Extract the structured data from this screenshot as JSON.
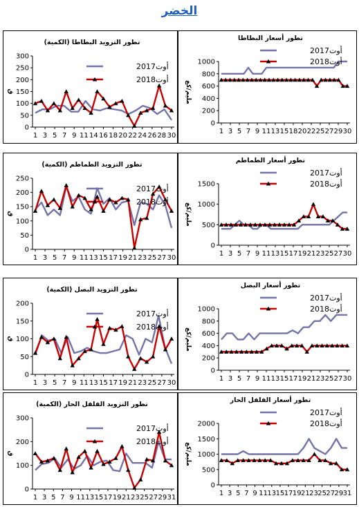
{
  "page": {
    "title": "الخضر"
  },
  "colors": {
    "series_2017": "#7373a8",
    "series_2018": "#c80000",
    "marker_2018": "#000000"
  },
  "chart_data": [
    {
      "id": "potato-supply",
      "type": "line",
      "title": "تطور التزويد البطاطا (الكمية)",
      "ylabel": "ق",
      "ylim": [
        0,
        300
      ],
      "yticks": [
        0,
        50,
        100,
        150,
        200,
        250,
        300
      ],
      "xtick_labels": [
        "1",
        "3",
        "5",
        "7",
        "9",
        "11",
        "14",
        "16",
        "18",
        "20",
        "22",
        "24",
        "26",
        "28",
        "30"
      ],
      "legend": [
        "أوت2017",
        "أوت2018"
      ],
      "series": [
        {
          "name": "أوت2017",
          "values": [
            60,
            75,
            75,
            90,
            90,
            65,
            65,
            110,
            75,
            70,
            80,
            75,
            70,
            55,
            70,
            90,
            80,
            55,
            75,
            30
          ]
        },
        {
          "name": "أوت2018",
          "values": [
            100,
            110,
            70,
            100,
            70,
            150,
            80,
            115,
            80,
            60,
            150,
            120,
            85,
            100,
            110,
            50,
            5,
            60,
            70,
            80,
            175,
            90,
            70
          ]
        }
      ]
    },
    {
      "id": "potato-price",
      "type": "line",
      "title": "تطور أسعار البطاطا",
      "ylabel": "مليم/كغ",
      "ylim": [
        0,
        1000
      ],
      "yticks": [
        0,
        200,
        400,
        600,
        800,
        1000
      ],
      "xtick_labels": [
        "1",
        "3",
        "5",
        "7",
        "9",
        "11",
        "13",
        "15",
        "18",
        "20",
        "22",
        "25",
        "27",
        "29",
        "30"
      ],
      "legend": [
        "أوت2017",
        "أوت2018"
      ],
      "series": [
        {
          "name": "أوت2017",
          "values": [
            800,
            800,
            800,
            800,
            800,
            800,
            900,
            800,
            800,
            800,
            900,
            900,
            900,
            900,
            900,
            900,
            900,
            900,
            900,
            900,
            900,
            900,
            900,
            900,
            900,
            900,
            1000,
            1000,
            1000
          ]
        },
        {
          "name": "أوت2018",
          "values": [
            700,
            700,
            700,
            700,
            700,
            700,
            700,
            700,
            700,
            700,
            700,
            700,
            700,
            700,
            700,
            700,
            700,
            700,
            700,
            700,
            700,
            700,
            600,
            700,
            700,
            700,
            700,
            700,
            600,
            600
          ]
        }
      ]
    },
    {
      "id": "tomato-supply",
      "type": "line",
      "title": "تطور التزويد الطماطم (الكمية)",
      "ylabel": "ق",
      "ylim": [
        0,
        250
      ],
      "yticks": [
        0,
        50,
        100,
        150,
        200,
        250
      ],
      "xtick_labels": [
        "1",
        "3",
        "5",
        "7",
        "9",
        "11",
        "13",
        "15",
        "17",
        "19",
        "21",
        "23",
        "25",
        "27",
        "30"
      ],
      "legend": [
        "أوت2017",
        "أوت2018"
      ],
      "series": [
        {
          "name": "أوت2017",
          "values": [
            140,
            165,
            120,
            140,
            120,
            220,
            170,
            185,
            140,
            125,
            215,
            160,
            180,
            140,
            165,
            170,
            85,
            165,
            160,
            140,
            190,
            155,
            75
          ]
        },
        {
          "name": "أوت2018",
          "values": [
            135,
            205,
            155,
            175,
            145,
            225,
            150,
            190,
            180,
            140,
            185,
            135,
            175,
            165,
            180,
            175,
            5,
            105,
            110,
            195,
            220,
            175,
            135
          ]
        }
      ]
    },
    {
      "id": "tomato-price",
      "type": "line",
      "title": "تطور أسعار الطماطم",
      "ylabel": "مليم/كغ",
      "ylim": [
        0,
        1500
      ],
      "yticks": [
        0,
        500,
        1000,
        1500
      ],
      "xtick_labels": [
        "1",
        "3",
        "5",
        "7",
        "9",
        "11",
        "13",
        "15",
        "17",
        "19",
        "21",
        "23",
        "25",
        "27",
        "30"
      ],
      "legend": [
        "أوت2017",
        "أوت2018"
      ],
      "series": [
        {
          "name": "أوت2017",
          "values": [
            400,
            400,
            400,
            500,
            600,
            500,
            500,
            400,
            400,
            500,
            500,
            400,
            400,
            400,
            400,
            400,
            400,
            400,
            500,
            500,
            500,
            500,
            500,
            500,
            500,
            600,
            700,
            800,
            800
          ]
        },
        {
          "name": "أوت2018",
          "values": [
            500,
            500,
            500,
            500,
            500,
            500,
            500,
            500,
            500,
            500,
            500,
            500,
            500,
            500,
            500,
            500,
            600,
            700,
            700,
            1000,
            700,
            700,
            600,
            600,
            500,
            400,
            400
          ]
        }
      ]
    },
    {
      "id": "onion-supply",
      "type": "line",
      "title": "تطور التزويد البصل (الكمية)",
      "ylabel": "ق",
      "ylim": [
        0,
        200
      ],
      "yticks": [
        0,
        50,
        100,
        150,
        200
      ],
      "xtick_labels": [
        "1",
        "3",
        "5",
        "7",
        "9",
        "11",
        "13",
        "15",
        "17",
        "19",
        "21",
        "23",
        "25",
        "27",
        "30"
      ],
      "legend": [
        "أوت2017",
        "أوت2018"
      ],
      "series": [
        {
          "name": "أوت2017",
          "values": [
            55,
            110,
            95,
            100,
            60,
            105,
            60,
            65,
            75,
            65,
            60,
            60,
            65,
            70,
            110,
            100,
            55,
            100,
            90,
            165,
            75,
            30
          ]
        },
        {
          "name": "أوت2018",
          "values": [
            60,
            105,
            90,
            100,
            45,
            105,
            25,
            45,
            65,
            70,
            155,
            85,
            130,
            125,
            135,
            50,
            15,
            45,
            35,
            50,
            135,
            70,
            100
          ]
        }
      ]
    },
    {
      "id": "onion-price",
      "type": "line",
      "title": "تطور أسعار البصل",
      "ylabel": "مليم/كغ",
      "ylim": [
        0,
        1000
      ],
      "yticks": [
        0,
        200,
        400,
        600,
        800,
        1000
      ],
      "xtick_labels": [
        "1",
        "3",
        "5",
        "7",
        "9",
        "11",
        "13",
        "15",
        "17",
        "19",
        "21",
        "23",
        "25",
        "27",
        "30"
      ],
      "legend": [
        "أوت2017",
        "أوت2018"
      ],
      "series": [
        {
          "name": "أوت2017",
          "values": [
            500,
            600,
            600,
            500,
            500,
            600,
            500,
            600,
            600,
            600,
            600,
            600,
            600,
            650,
            600,
            700,
            700,
            800,
            800,
            900,
            800,
            900,
            900,
            900
          ]
        },
        {
          "name": "أوت2018",
          "values": [
            300,
            300,
            300,
            300,
            300,
            300,
            300,
            300,
            300,
            350,
            400,
            400,
            400,
            350,
            400,
            400,
            400,
            300,
            400,
            400,
            400,
            400,
            400,
            400,
            400,
            400
          ]
        }
      ]
    },
    {
      "id": "pepper-supply",
      "type": "line",
      "title": "تطور التزويد الفلفل الحار (الكمية)",
      "ylabel": "ق",
      "ylim": [
        0,
        300
      ],
      "yticks": [
        0,
        100,
        200,
        300
      ],
      "xtick_labels": [
        "1",
        "3",
        "5",
        "7",
        "9",
        "11",
        "13",
        "15",
        "17",
        "19",
        "21",
        "23",
        "25",
        "27",
        "29",
        "31"
      ],
      "legend": [
        "أوت2017",
        "أوت2018"
      ],
      "series": [
        {
          "name": "أوت2017",
          "values": [
            80,
            105,
            110,
            130,
            90,
            125,
            85,
            100,
            140,
            100,
            115,
            120,
            80,
            75,
            150,
            110,
            110,
            110,
            90,
            200,
            125,
            125
          ]
        },
        {
          "name": "أوت2018",
          "values": [
            150,
            115,
            120,
            130,
            80,
            170,
            70,
            135,
            160,
            90,
            160,
            105,
            115,
            130,
            180,
            80,
            5,
            40,
            125,
            120,
            240,
            120,
            100
          ]
        }
      ]
    },
    {
      "id": "pepper-price",
      "type": "line",
      "title": "تطور أسعار الفلفل الحار",
      "ylabel": "مليم/كغ",
      "ylim": [
        0,
        2000
      ],
      "yticks": [
        0,
        500,
        1000,
        1500,
        2000
      ],
      "xtick_labels": [
        "1",
        "3",
        "5",
        "7",
        "9",
        "11",
        "13",
        "15",
        "17",
        "19",
        "21",
        "23",
        "25",
        "27",
        "29",
        "31"
      ],
      "legend": [
        "أوت2017",
        "أوت2018"
      ],
      "series": [
        {
          "name": "أوت2017",
          "values": [
            1000,
            1000,
            1000,
            1000,
            1100,
            1000,
            1000,
            1000,
            1000,
            1000,
            1000,
            1000,
            1000,
            1000,
            1000,
            1200,
            1500,
            1200,
            1100,
            1000,
            1200,
            1500,
            1200,
            1200
          ]
        },
        {
          "name": "أوت2018",
          "values": [
            800,
            800,
            700,
            800,
            800,
            800,
            800,
            800,
            800,
            800,
            700,
            700,
            700,
            800,
            800,
            800,
            800,
            1000,
            800,
            800,
            700,
            700,
            500,
            500
          ]
        }
      ]
    }
  ]
}
